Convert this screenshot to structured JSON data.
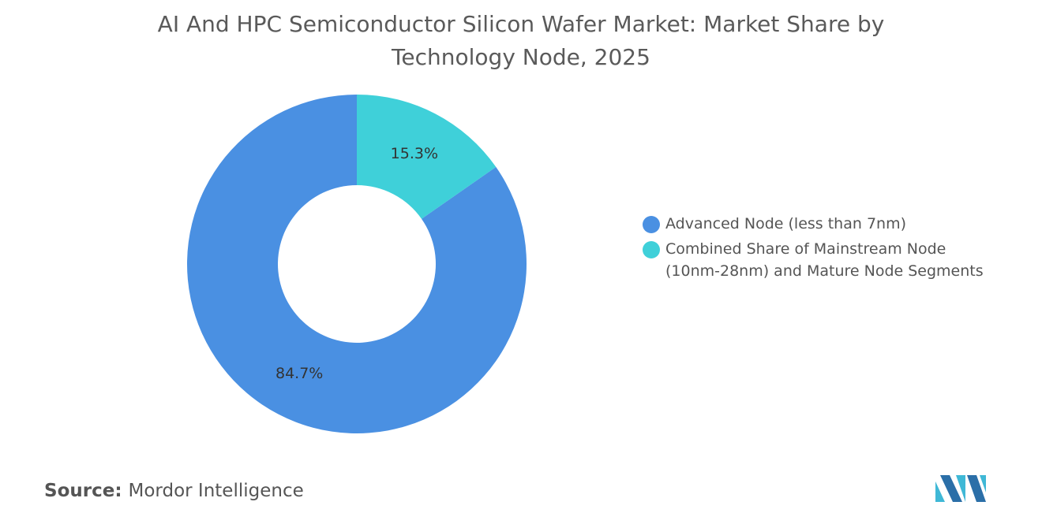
{
  "chart_data": {
    "type": "pie",
    "title": "AI And HPC Semiconductor Silicon Wafer Market: Market Share by Technology Node, 2025",
    "categories": [
      "Advanced Node (less than 7nm)",
      "Combined Share of Mainstream Node (10nm-28nm) and Mature Node Segments"
    ],
    "values": [
      84.7,
      15.3
    ],
    "value_labels": [
      "84.7%",
      "15.3%"
    ],
    "colors": [
      "#4a90e2",
      "#3fd0d9"
    ],
    "donut": true
  },
  "source": {
    "label": "Source:",
    "text": "Mordor Intelligence"
  }
}
